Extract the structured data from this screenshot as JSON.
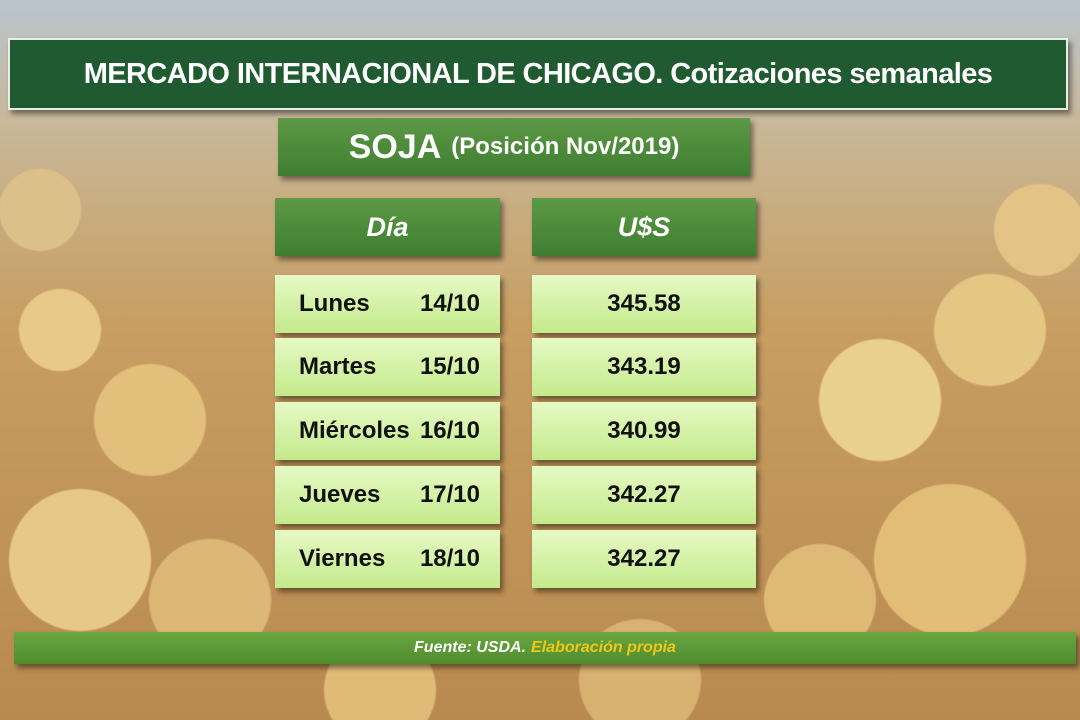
{
  "header": {
    "title": "MERCADO INTERNACIONAL DE CHICAGO. Cotizaciones semanales"
  },
  "subtitle": {
    "product": "SOJA",
    "position": "(Posición Nov/2019)"
  },
  "table": {
    "columns": [
      "Día",
      "U$S"
    ],
    "rows": [
      [
        "Lunes",
        "14/10",
        345.58
      ],
      [
        "Martes",
        "15/10",
        343.19
      ],
      [
        "Miércoles",
        "16/10",
        340.99
      ],
      [
        "Jueves",
        "17/10",
        342.27
      ],
      [
        "Viernes",
        "18/10",
        342.27
      ]
    ]
  },
  "footer": {
    "source": "Fuente: USDA.",
    "note": "Elaboración propia"
  }
}
